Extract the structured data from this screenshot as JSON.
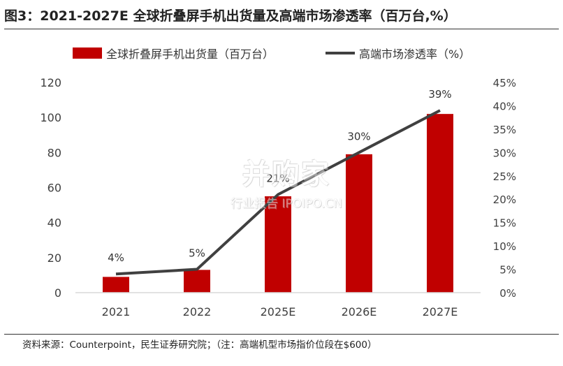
{
  "header": {
    "title": "图3：2021-2027E  全球折叠屏手机出货量及高端市场渗透率（百万台,%）"
  },
  "footer": {
    "source": "资料来源：Counterpoint，民生证券研究院；（注：高端机型市场指价位段在$600）"
  },
  "watermark": {
    "brand": "并购家",
    "subtitle": "行业报告 IPOIPO.CN"
  },
  "colors": {
    "bar": "#c00000",
    "line": "#404040",
    "axis": "#d9d9d9",
    "tick_text": "#404040"
  },
  "chart_data": {
    "type": "bar",
    "categories": [
      "2021",
      "2022",
      "2025E",
      "2026E",
      "2027E"
    ],
    "series": [
      {
        "name": "全球折叠屏手机出货量（百万台）",
        "type": "bar",
        "axis": "left",
        "values": [
          9,
          13,
          55,
          79,
          102
        ]
      },
      {
        "name": "高端市场渗透率（%）",
        "type": "line",
        "axis": "right",
        "values": [
          4,
          5,
          21,
          30,
          39
        ],
        "data_labels": [
          "4%",
          "5%",
          "21%",
          "30%",
          "39%"
        ]
      }
    ],
    "y_left": {
      "min": 0,
      "max": 120,
      "step": 20,
      "ticks": [
        "0",
        "20",
        "40",
        "60",
        "80",
        "100",
        "120"
      ]
    },
    "y_right": {
      "min": 0,
      "max": 45,
      "step": 5,
      "ticks": [
        "0%",
        "5%",
        "10%",
        "15%",
        "20%",
        "25%",
        "30%",
        "35%",
        "40%",
        "45%"
      ]
    },
    "grid": false,
    "legend_position": "top"
  }
}
